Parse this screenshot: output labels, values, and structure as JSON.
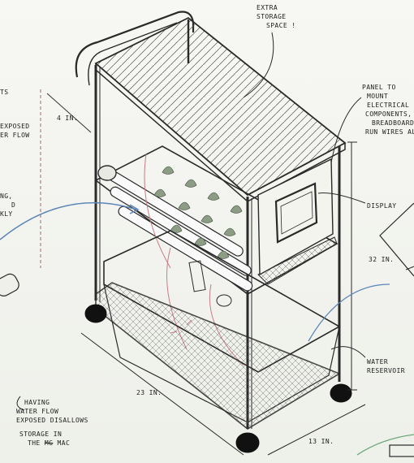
{
  "annotations": {
    "extra_storage": [
      "EXTRA",
      "STORAGE",
      "SPACE !"
    ],
    "panel": [
      "PANEL TO",
      "MOUNT",
      "ELECTRICAL",
      "COMPONENTS,",
      "BREADBOARD,",
      "RUN WIRES ALO"
    ],
    "display": "DISPLAY",
    "water_reservoir": [
      "WATER",
      "RESERVOIR"
    ],
    "left_top_fragment": "TS",
    "left_exposed_fragment": [
      "EXPOSED",
      "ER FLOW"
    ],
    "left_mid_fragment": [
      "NG,",
      "D",
      "KLY"
    ],
    "having_note": {
      "lines": [
        "HAVING",
        "WATER FLOW",
        "EXPOSED DISALLOWS",
        "STORAGE IN"
      ],
      "last_line_prefix": "THE",
      "last_line_struck": "MG",
      "last_line_suffix": "MAC"
    }
  },
  "dimensions": {
    "height": "4 IN.",
    "length": "23 IN.",
    "depth": "13 IN.",
    "right_height": "32 IN."
  },
  "colors": {
    "ink": "#2a2a2a",
    "plant_leaf": "#8d9c84",
    "water_flow": "#c97c86",
    "blue_arrow": "#5c86b8",
    "green_arrow": "#6aa57c"
  }
}
